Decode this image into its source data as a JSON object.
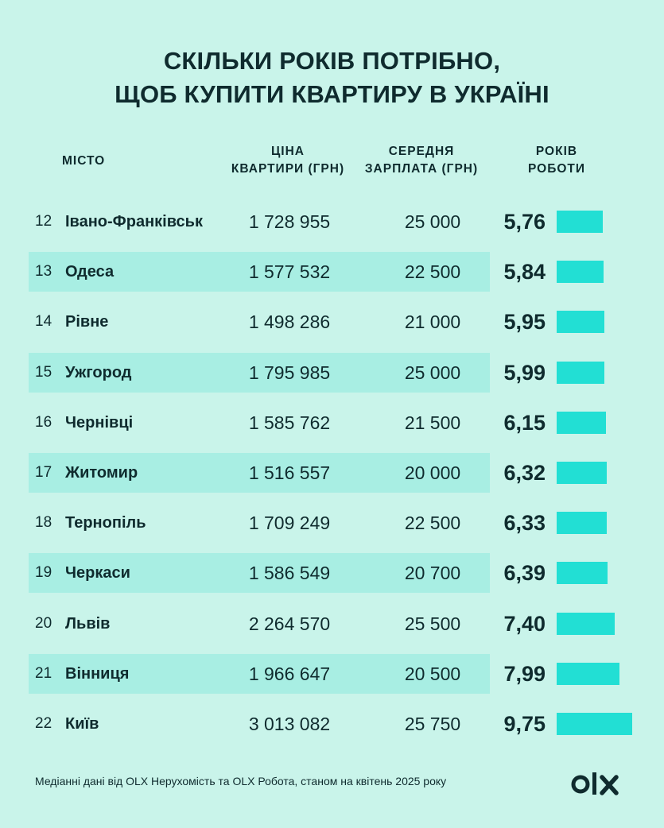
{
  "title_line1": "Скільки років потрібно,",
  "title_line2": "щоб купити квартиру в Україні",
  "headers": {
    "city": "МІСТО",
    "price_line1": "ЦІНА",
    "price_line2": "КВАРТИРИ (ГРН)",
    "salary_line1": "СЕРЕДНЯ",
    "salary_line2": "ЗАРПЛАТА (ГРН)",
    "years_line1": "РОКІВ",
    "years_line2": "РОБОТИ"
  },
  "footer": "Медіанні дані від OLX Нерухомість та OLX Робота, станом на квітень 2025 року",
  "logo_text": "OLX",
  "colors": {
    "background": "#c9f4ea",
    "row_shade": "#a8eee3",
    "bar": "#22dfd4",
    "text": "#0f2b2e"
  },
  "chart_data": {
    "type": "bar",
    "categories": [
      "Івано-Франківськ",
      "Одеса",
      "Рівне",
      "Ужгород",
      "Чернівці",
      "Житомир",
      "Тернопіль",
      "Черкаси",
      "Львів",
      "Вінниця",
      "Київ"
    ],
    "values": [
      5.76,
      5.84,
      5.95,
      5.99,
      6.15,
      6.32,
      6.33,
      6.39,
      7.4,
      7.99,
      9.75
    ],
    "rows": [
      {
        "rank": "12",
        "city": "Івано-Франківськ",
        "price": "1 728 955",
        "salary": "25 000",
        "years": "5,76",
        "value": 5.76
      },
      {
        "rank": "13",
        "city": "Одеса",
        "price": "1 577 532",
        "salary": "22 500",
        "years": "5,84",
        "value": 5.84
      },
      {
        "rank": "14",
        "city": "Рівне",
        "price": "1 498 286",
        "salary": "21 000",
        "years": "5,95",
        "value": 5.95
      },
      {
        "rank": "15",
        "city": "Ужгород",
        "price": "1 795 985",
        "salary": "25 000",
        "years": "5,99",
        "value": 5.99
      },
      {
        "rank": "16",
        "city": "Чернівці",
        "price": "1 585 762",
        "salary": "21 500",
        "years": "6,15",
        "value": 6.15
      },
      {
        "rank": "17",
        "city": "Житомир",
        "price": "1 516 557",
        "salary": "20 000",
        "years": "6,32",
        "value": 6.32
      },
      {
        "rank": "18",
        "city": "Тернопіль",
        "price": "1 709 249",
        "salary": "22 500",
        "years": "6,33",
        "value": 6.33
      },
      {
        "rank": "19",
        "city": "Черкаси",
        "price": "1 586 549",
        "salary": "20 700",
        "years": "6,39",
        "value": 6.39
      },
      {
        "rank": "20",
        "city": "Львів",
        "price": "2 264 570",
        "salary": "25 500",
        "years": "7,40",
        "value": 7.4
      },
      {
        "rank": "21",
        "city": "Вінниця",
        "price": "1 966 647",
        "salary": "20 500",
        "years": "7,99",
        "value": 7.99
      },
      {
        "rank": "22",
        "city": "Київ",
        "price": "3 013 082",
        "salary": "25 750",
        "years": "9,75",
        "value": 9.75
      }
    ]
  }
}
